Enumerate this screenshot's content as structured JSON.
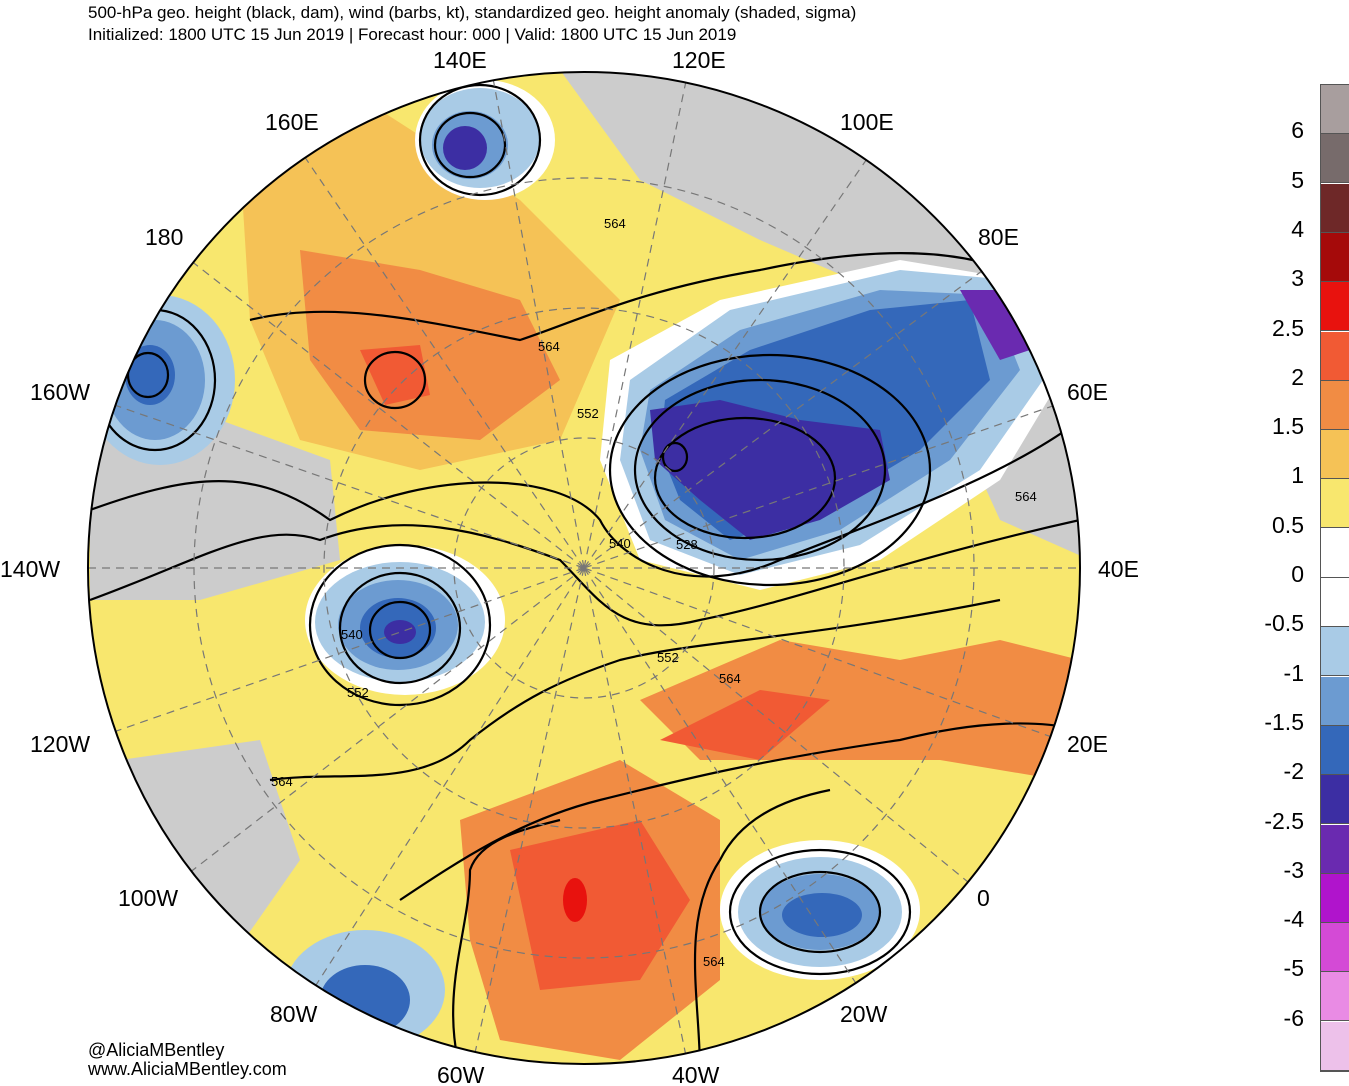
{
  "title": {
    "line1": "500-hPa geo. height (black, dam), wind (barbs, kt), standardized geo. height anomaly (shaded, sigma)",
    "line2": "Initialized: 1800 UTC 15 Jun 2019 | Forecast hour: 000 | Valid: 1800 UTC 15 Jun 2019"
  },
  "longitude_labels": [
    "140E",
    "120E",
    "100E",
    "80E",
    "60E",
    "40E",
    "20E",
    "0",
    "20W",
    "40W",
    "60W",
    "80W",
    "100W",
    "120W",
    "140W",
    "160W",
    "180",
    "160E"
  ],
  "contour_labels": [
    "564",
    "564",
    "552",
    "540",
    "528",
    "540",
    "552",
    "552",
    "564",
    "564",
    "564",
    "564"
  ],
  "colorbar": {
    "labels": [
      "6",
      "5",
      "4",
      "3",
      "2.5",
      "2",
      "1.5",
      "1",
      "0.5",
      "0",
      "-0.5",
      "-1",
      "-1.5",
      "-2",
      "-2.5",
      "-3",
      "-4",
      "-5",
      "-6"
    ],
    "colors": [
      "#a89e9e",
      "#776b6b",
      "#6e2828",
      "#a50a0a",
      "#e8120e",
      "#f15a34",
      "#f18c44",
      "#f5c256",
      "#f8e76e",
      "#ffffff",
      "#ffffff",
      "#a9cbe6",
      "#6c9bd1",
      "#3468ba",
      "#3c2ea3",
      "#6a2ab0",
      "#b014cc",
      "#d44ad6",
      "#e98be4",
      "#edc1ea"
    ]
  },
  "credits": {
    "handle": "@AliciaMBentley",
    "site": "www.AliciaMBentley.com"
  }
}
